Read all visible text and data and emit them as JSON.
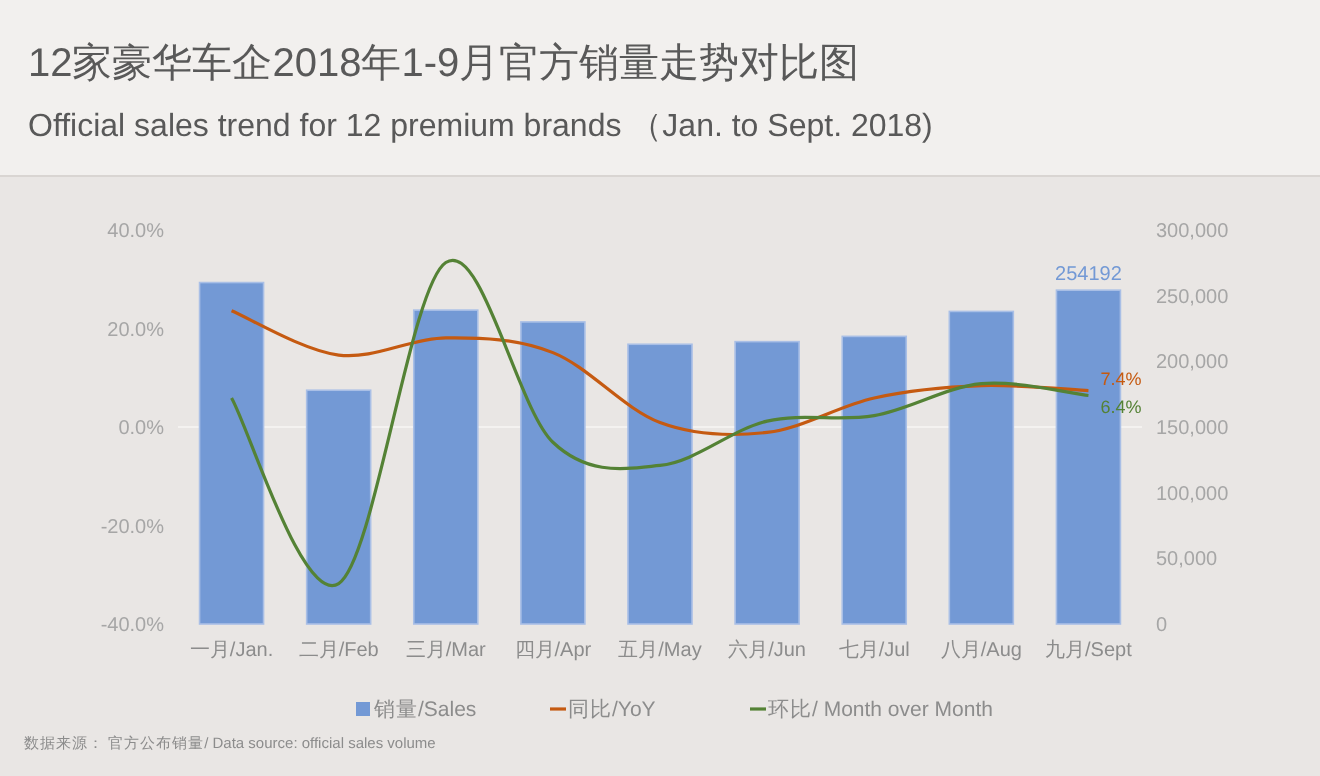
{
  "chart_data": {
    "type": "bar",
    "title": "12家豪华车企2018年1-9月官方销量走势对比图",
    "subtitle": "Official sales trend for 12 premium brands （Jan. to Sept. 2018)",
    "categories": [
      "一月/Jan.",
      "二月/Feb",
      "三月/Mar",
      "四月/Apr",
      "五月/May",
      "六月/Jun",
      "七月/Jul",
      "八月/Aug",
      "九月/Sept"
    ],
    "series": [
      {
        "name": "销量/Sales",
        "axis": "y2",
        "color": "#7399d5",
        "values": [
          260000,
          178000,
          239000,
          230000,
          213000,
          215000,
          219000,
          238000,
          254192
        ],
        "value_labels": [
          null,
          null,
          null,
          null,
          null,
          null,
          null,
          null,
          "254192"
        ]
      },
      {
        "name": "同比/YoY",
        "type": "line",
        "color": "#c55a11",
        "values": [
          23.6,
          14.6,
          18.1,
          15.1,
          0.9,
          -1.1,
          5.9,
          8.4,
          7.4
        ],
        "value_labels": [
          null,
          null,
          null,
          null,
          null,
          null,
          null,
          null,
          "7.4%"
        ]
      },
      {
        "name": "环比/ Month over Month",
        "type": "line",
        "color": "#548235",
        "values": [
          5.9,
          -31.8,
          33.4,
          -3.1,
          -7.8,
          1.2,
          2.3,
          8.8,
          6.4
        ],
        "value_labels": [
          null,
          null,
          null,
          null,
          null,
          null,
          null,
          null,
          "6.4%"
        ]
      }
    ],
    "ylim": [
      -40,
      40
    ],
    "yticks": [
      {
        "value": -40,
        "label": "-40.0%"
      },
      {
        "value": -20,
        "label": "-20.0%"
      },
      {
        "value": 0,
        "label": "0.0%"
      },
      {
        "value": 20,
        "label": "20.0%"
      },
      {
        "value": 40,
        "label": "40.0%"
      }
    ],
    "y2lim": [
      0,
      300000
    ],
    "y2ticks": [
      0,
      {
        "value": 50000,
        "label": "50,000"
      },
      {
        "value": 100000,
        "label": "100,000"
      },
      {
        "value": 150000,
        "label": "150,000"
      },
      {
        "value": 200000,
        "label": "200,000"
      },
      {
        "value": 250000,
        "label": "250,000"
      },
      {
        "value": 300000,
        "label": "300,000"
      }
    ],
    "legend": "bottom",
    "annotations": [
      "数据来源： 官方公布销量/ Data source: official sales volume"
    ]
  }
}
